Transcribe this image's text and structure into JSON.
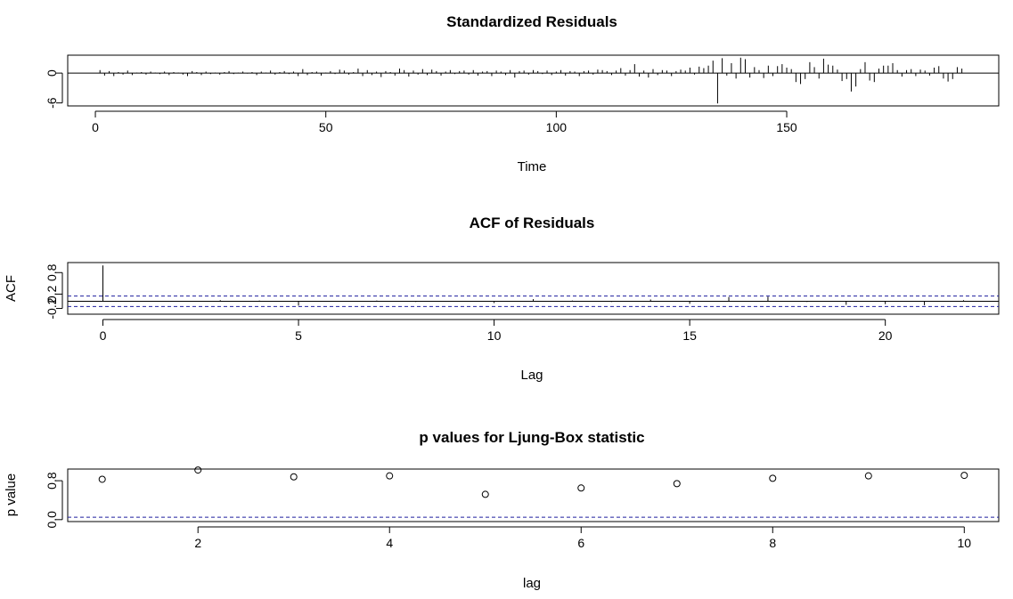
{
  "chart_data": [
    {
      "type": "bar",
      "title": "Standardized Residuals",
      "xlabel": "Time",
      "ylabel": "",
      "xlim": [
        -6,
        196
      ],
      "ylim": [
        -6.6,
        3.6
      ],
      "xticks": [
        0,
        50,
        100,
        150
      ],
      "yticks": [
        -6,
        0
      ],
      "hline": 0,
      "values": [
        0.6,
        -0.5,
        0.4,
        -0.6,
        0.2,
        -0.3,
        0.5,
        -0.4,
        0.1,
        0.2,
        -0.3,
        0.3,
        0.1,
        -0.2,
        0.3,
        -0.4,
        0.2,
        0.1,
        -0.3,
        -0.6,
        0.4,
        0.2,
        -0.4,
        0.3,
        -0.2,
        0.1,
        -0.3,
        0.2,
        0.4,
        -0.2,
        0.1,
        0.3,
        -0.1,
        0.2,
        -0.4,
        0.3,
        0.1,
        0.5,
        -0.3,
        0.2,
        0.4,
        -0.2,
        0.3,
        -0.6,
        0.8,
        -0.4,
        0.2,
        0.3,
        -0.5,
        0.1,
        0.4,
        -0.2,
        0.7,
        0.5,
        -0.3,
        0.2,
        0.9,
        -0.6,
        0.6,
        -0.4,
        0.3,
        -0.8,
        0.4,
        0.2,
        -0.5,
        0.9,
        0.6,
        -0.7,
        0.5,
        -0.3,
        0.8,
        -0.4,
        0.7,
        0.4,
        -0.5,
        0.3,
        0.6,
        -0.2,
        0.4,
        0.5,
        -0.3,
        0.6,
        -0.5,
        0.3,
        0.4,
        -0.6,
        0.5,
        0.3,
        -0.4,
        0.6,
        -0.9,
        0.4,
        0.5,
        -0.3,
        0.6,
        0.4,
        -0.2,
        0.5,
        -0.4,
        0.3,
        0.6,
        -0.5,
        0.4,
        0.3,
        -0.6,
        0.4,
        0.5,
        -0.3,
        0.7,
        0.6,
        0.4,
        -0.4,
        0.5,
        1.0,
        -0.5,
        0.6,
        1.8,
        -0.7,
        0.5,
        -0.9,
        0.8,
        -0.4,
        0.6,
        0.5,
        -0.6,
        0.4,
        0.7,
        0.5,
        1.1,
        -0.3,
        1.3,
        1.0,
        1.5,
        2.5,
        -6.1,
        3.0,
        -0.5,
        2.0,
        -1.1,
        3.1,
        2.8,
        -0.9,
        1.2,
        0.6,
        -1.0,
        1.5,
        -0.6,
        1.4,
        1.8,
        1.1,
        0.8,
        -1.8,
        -2.2,
        -1.2,
        2.2,
        1.2,
        -1.1,
        2.9,
        1.7,
        1.5,
        0.7,
        -1.6,
        -1.2,
        -3.7,
        -2.7,
        0.8,
        2.2,
        -1.5,
        -1.8,
        0.9,
        1.5,
        1.5,
        2.0,
        0.6,
        -0.7,
        0.6,
        0.8,
        -0.6,
        0.7,
        0.5,
        -0.5,
        1.1,
        1.4,
        -1.1,
        -1.7,
        -1.2,
        1.2,
        0.9
      ]
    },
    {
      "type": "bar",
      "title": "ACF of Residuals",
      "xlabel": "Lag",
      "ylabel": "ACF",
      "xlim": [
        -0.9,
        22.9
      ],
      "ylim": [
        -0.36,
        1.08
      ],
      "xticks": [
        0,
        5,
        10,
        15,
        20
      ],
      "yticks": [
        -0.2,
        0.2,
        0.8
      ],
      "ytick_labels": [
        "-0.2",
        "0.2",
        "0.8"
      ],
      "hline": 0,
      "ci": [
        -0.145,
        0.145
      ],
      "x": [
        0,
        1,
        2,
        3,
        4,
        5,
        6,
        7,
        8,
        9,
        10,
        11,
        12,
        13,
        14,
        15,
        16,
        17,
        18,
        19,
        20,
        21,
        22
      ],
      "values": [
        1.0,
        0.01,
        -0.01,
        0.03,
        0.02,
        -0.12,
        0.01,
        0.02,
        -0.02,
        0.01,
        -0.05,
        0.06,
        0.02,
        -0.02,
        0.05,
        -0.07,
        0.12,
        0.13,
        -0.02,
        -0.1,
        -0.08,
        -0.11,
        0.03
      ]
    },
    {
      "type": "scatter",
      "title": "p values for Ljung-Box statistic",
      "xlabel": "lag",
      "ylabel": "p value",
      "xlim": [
        0.64,
        10.36
      ],
      "ylim": [
        -0.04,
        1.04
      ],
      "xticks": [
        2,
        4,
        6,
        8,
        10
      ],
      "yticks": [
        0.0,
        0.8
      ],
      "ytick_labels": [
        "0.0",
        "0.8"
      ],
      "hline_dashed": 0.05,
      "x": [
        1,
        2,
        3,
        4,
        5,
        6,
        7,
        8,
        9,
        10
      ],
      "y": [
        0.83,
        1.02,
        0.88,
        0.9,
        0.52,
        0.65,
        0.74,
        0.85,
        0.9,
        0.91
      ]
    }
  ]
}
